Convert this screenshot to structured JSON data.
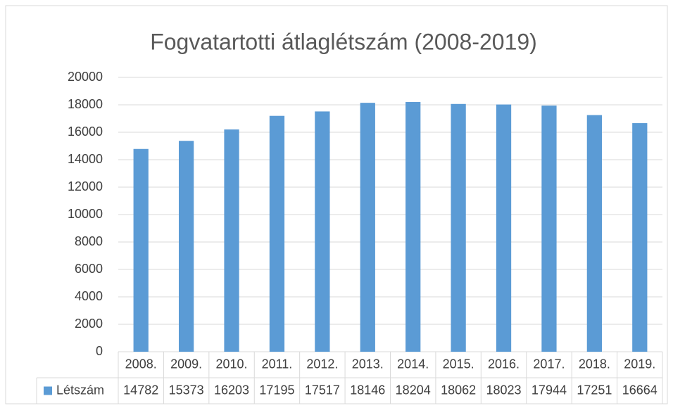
{
  "chart_data": {
    "type": "bar",
    "title": "Fogvatartotti átlaglétszám (2008-2019)",
    "categories": [
      "2008.",
      "2009.",
      "2010.",
      "2011.",
      "2012.",
      "2013.",
      "2014.",
      "2015.",
      "2016.",
      "2017.",
      "2018.",
      "2019."
    ],
    "series": [
      {
        "name": "Létszám",
        "color": "#5b9bd5",
        "values": [
          14782,
          15373,
          16203,
          17195,
          17517,
          18146,
          18204,
          18062,
          18023,
          17944,
          17251,
          16664
        ]
      }
    ],
    "ylim": [
      0,
      20000
    ],
    "yticks": [
      0,
      2000,
      4000,
      6000,
      8000,
      10000,
      12000,
      14000,
      16000,
      18000,
      20000
    ],
    "grid": true,
    "data_table": true
  }
}
